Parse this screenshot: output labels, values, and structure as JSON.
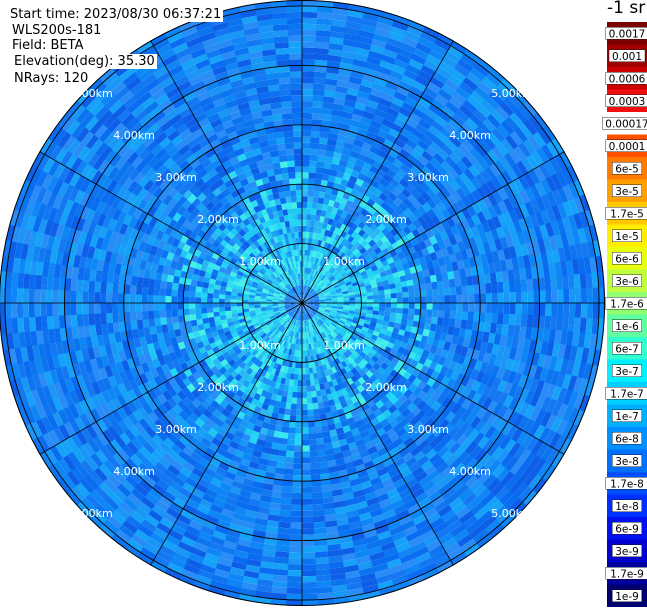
{
  "header": {
    "start_time": "Start time: 2023/08/30 06:37:21",
    "instrument": "WLS200s-181",
    "field": "Field: BETA",
    "elevation": "Elevation(deg): 35.30",
    "nrays": "NRays: 120"
  },
  "colorbar": {
    "units": "-1 sr",
    "labels": [
      "0.0017",
      "0.001",
      "0.0006",
      "0.0003",
      "0.00017",
      "0.0001",
      "6e-5",
      "3e-5",
      "1.7e-5",
      "1e-5",
      "6e-6",
      "3e-6",
      "1.7e-6",
      "1e-6",
      "6e-7",
      "3e-7",
      "1.7e-7",
      "1e-7",
      "6e-8",
      "3e-8",
      "1.7e-8",
      "1e-8",
      "6e-9",
      "3e-9",
      "1.7e-9",
      "1e-9"
    ],
    "colors": [
      "#7a0000",
      "#a00000",
      "#cc0000",
      "#ee1010",
      "#ffffff",
      "#ff5000",
      "#ff7a00",
      "#ffa000",
      "#ffc800",
      "#ffee00",
      "#e8ff10",
      "#c0ff40",
      "#90ff70",
      "#60ffa0",
      "#30ffd0",
      "#00f0ff",
      "#00d0ff",
      "#00b0ff",
      "#0090ff",
      "#0070ff",
      "#0050ff",
      "#0030ff",
      "#0010f0",
      "#0000d0",
      "#0000a0",
      "#000070"
    ]
  },
  "chart_data": {
    "type": "heatmap",
    "projection": "polar PPI (plan position indicator)",
    "field": "BETA",
    "units": "-1 sr",
    "nrays": 120,
    "elevation_deg": 35.3,
    "range_rings_km": [
      "1.00km",
      "2.00km",
      "3.00km",
      "4.00km",
      "5.00km"
    ],
    "max_range_km": 5.1,
    "spokes_every_deg": 30,
    "color_scale": "log",
    "value_range": [
      1e-09,
      0.0017
    ],
    "dominant_values": {
      "near_center_km_1_to_2": "3e-7 to 1.7e-7",
      "outer_km_2_to_5": "1e-7 to 3e-8"
    }
  }
}
